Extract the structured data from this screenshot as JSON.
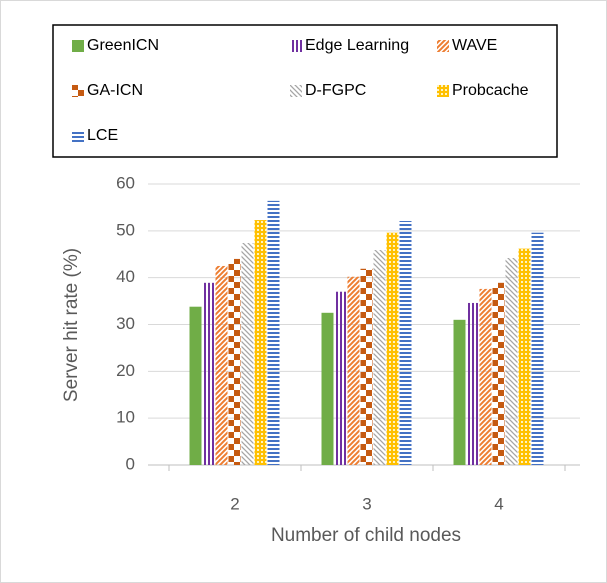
{
  "chart_data": {
    "type": "bar",
    "categories": [
      "2",
      "3",
      "4"
    ],
    "series": [
      {
        "name": "GreenICN",
        "color": "#70ad47",
        "values": [
          33.8,
          32.5,
          31.0
        ]
      },
      {
        "name": "Edge Learning",
        "color": "#7030a0",
        "values": [
          38.9,
          37.0,
          34.6
        ]
      },
      {
        "name": "WAVE",
        "color": "#ed7d31",
        "values": [
          42.5,
          40.2,
          37.6
        ]
      },
      {
        "name": "GA-ICN",
        "color": "#c55a11",
        "values": [
          44.0,
          41.9,
          38.9
        ]
      },
      {
        "name": "D-FGPC",
        "color": "#a5a5a5",
        "values": [
          47.4,
          45.9,
          44.2
        ]
      },
      {
        "name": "Probcache",
        "color": "#ffc000",
        "values": [
          52.3,
          49.6,
          46.2
        ]
      },
      {
        "name": "LCE",
        "color": "#4472c4",
        "values": [
          56.4,
          52.1,
          49.6
        ]
      }
    ],
    "xlabel": "Number of child nodes",
    "ylabel": "Server hit rate (%)",
    "ylim": [
      0,
      60
    ],
    "yticks": [
      0,
      10,
      20,
      30,
      40,
      50,
      60
    ],
    "grid": true
  }
}
